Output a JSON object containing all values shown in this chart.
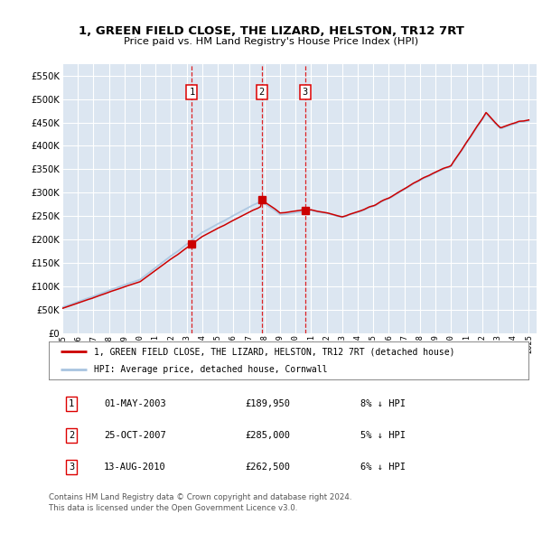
{
  "title_line1": "1, GREEN FIELD CLOSE, THE LIZARD, HELSTON, TR12 7RT",
  "title_line2": "Price paid vs. HM Land Registry's House Price Index (HPI)",
  "background_color": "#ffffff",
  "plot_bg_color": "#dce6f1",
  "grid_color": "#ffffff",
  "hpi_color": "#a8c4e0",
  "price_color": "#cc0000",
  "ylim": [
    0,
    575000
  ],
  "yticks": [
    0,
    50000,
    100000,
    150000,
    200000,
    250000,
    300000,
    350000,
    400000,
    450000,
    500000,
    550000
  ],
  "xmin": 1995,
  "xmax": 2025,
  "sales": [
    {
      "label": "1",
      "date_x": 2003.33,
      "price": 189950
    },
    {
      "label": "2",
      "date_x": 2007.83,
      "price": 285000
    },
    {
      "label": "3",
      "date_x": 2010.62,
      "price": 262500
    }
  ],
  "legend_label_price": "1, GREEN FIELD CLOSE, THE LIZARD, HELSTON, TR12 7RT (detached house)",
  "legend_label_hpi": "HPI: Average price, detached house, Cornwall",
  "footnote": "Contains HM Land Registry data © Crown copyright and database right 2024.\nThis data is licensed under the Open Government Licence v3.0.",
  "table_rows": [
    [
      "1",
      "01-MAY-2003",
      "£189,950",
      "8% ↓ HPI"
    ],
    [
      "2",
      "25-OCT-2007",
      "£285,000",
      "5% ↓ HPI"
    ],
    [
      "3",
      "13-AUG-2010",
      "£262,500",
      "6% ↓ HPI"
    ]
  ]
}
